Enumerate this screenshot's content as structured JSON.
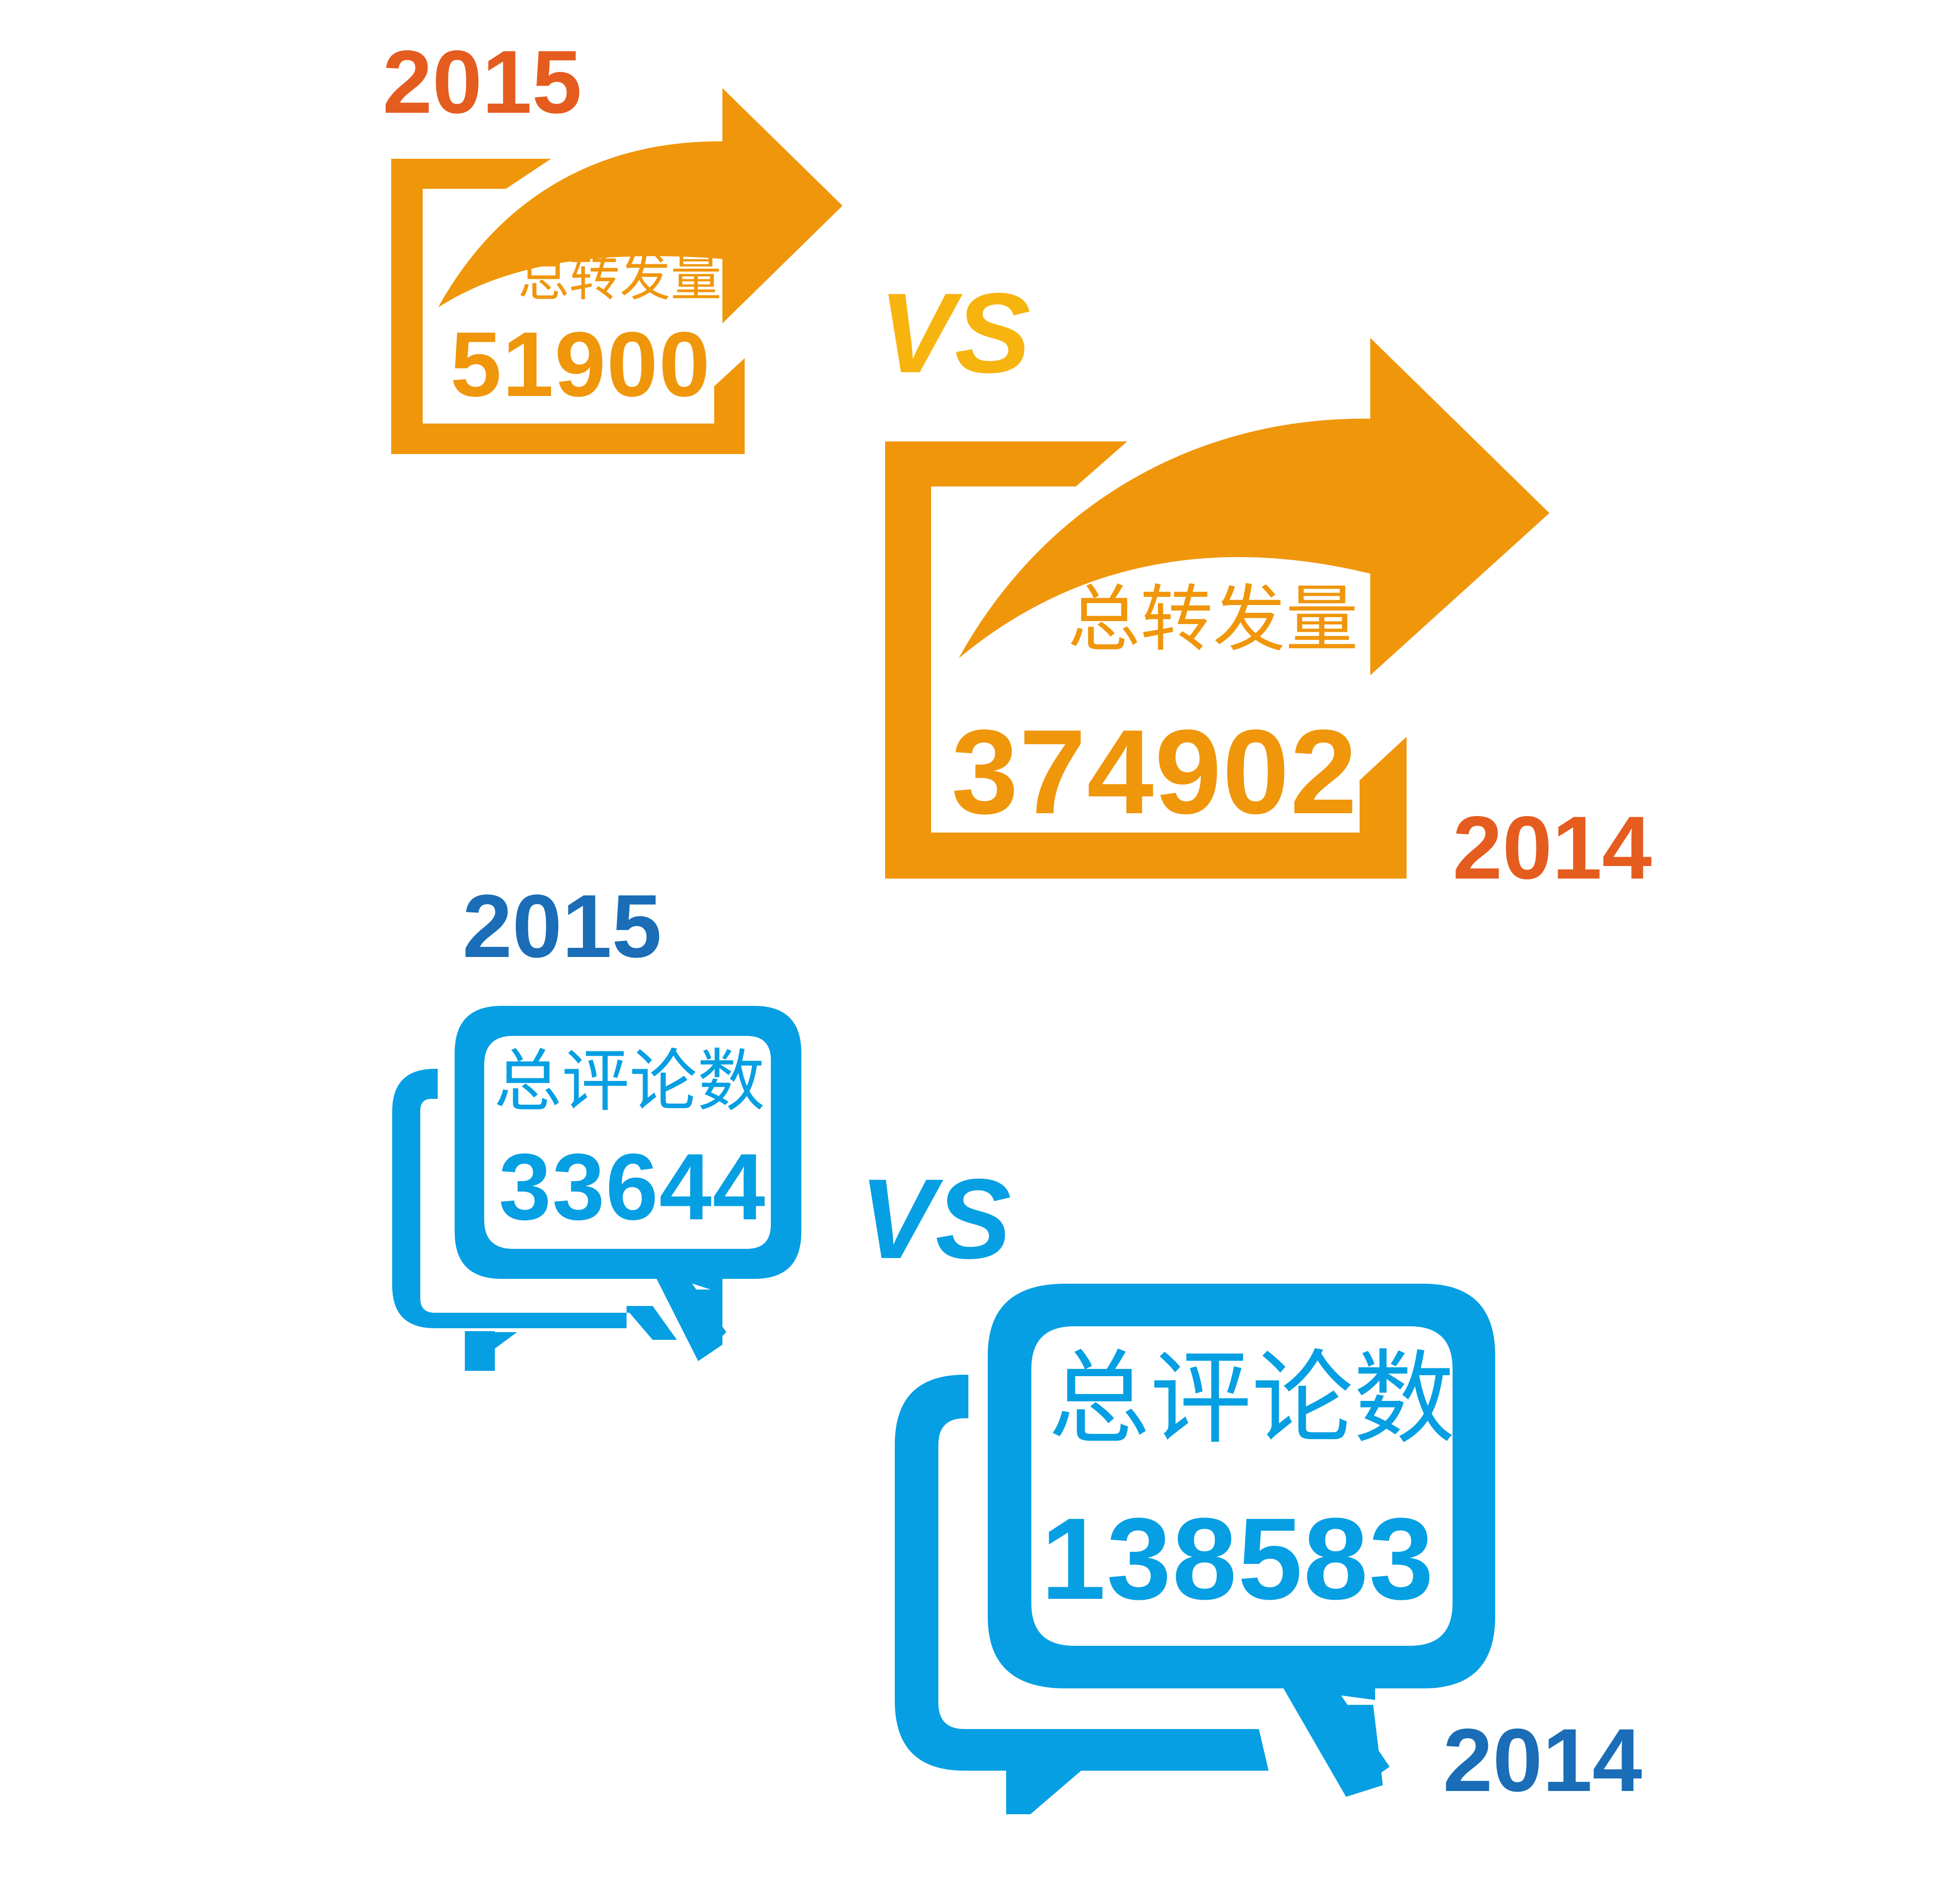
{
  "colors": {
    "orange": "#f0960b",
    "red_orange": "#e55c1f",
    "vs_yellow": "#f7b40f",
    "blue": "#069fe3",
    "dark_blue": "#1a6db6"
  },
  "icons": [
    "share-arrow-icon",
    "chat-bubbles-icon"
  ],
  "reposts": {
    "vs": "VS",
    "y2015": {
      "year": "2015",
      "label": "总转发量",
      "value": "51900"
    },
    "y2014": {
      "year": "2014",
      "label": "总转发量",
      "value": "374902"
    }
  },
  "comments": {
    "vs": "VS",
    "y2015": {
      "year": "2015",
      "label": "总评论数",
      "value": "33644"
    },
    "y2014": {
      "year": "2014",
      "label": "总评论数",
      "value": "138583"
    }
  }
}
